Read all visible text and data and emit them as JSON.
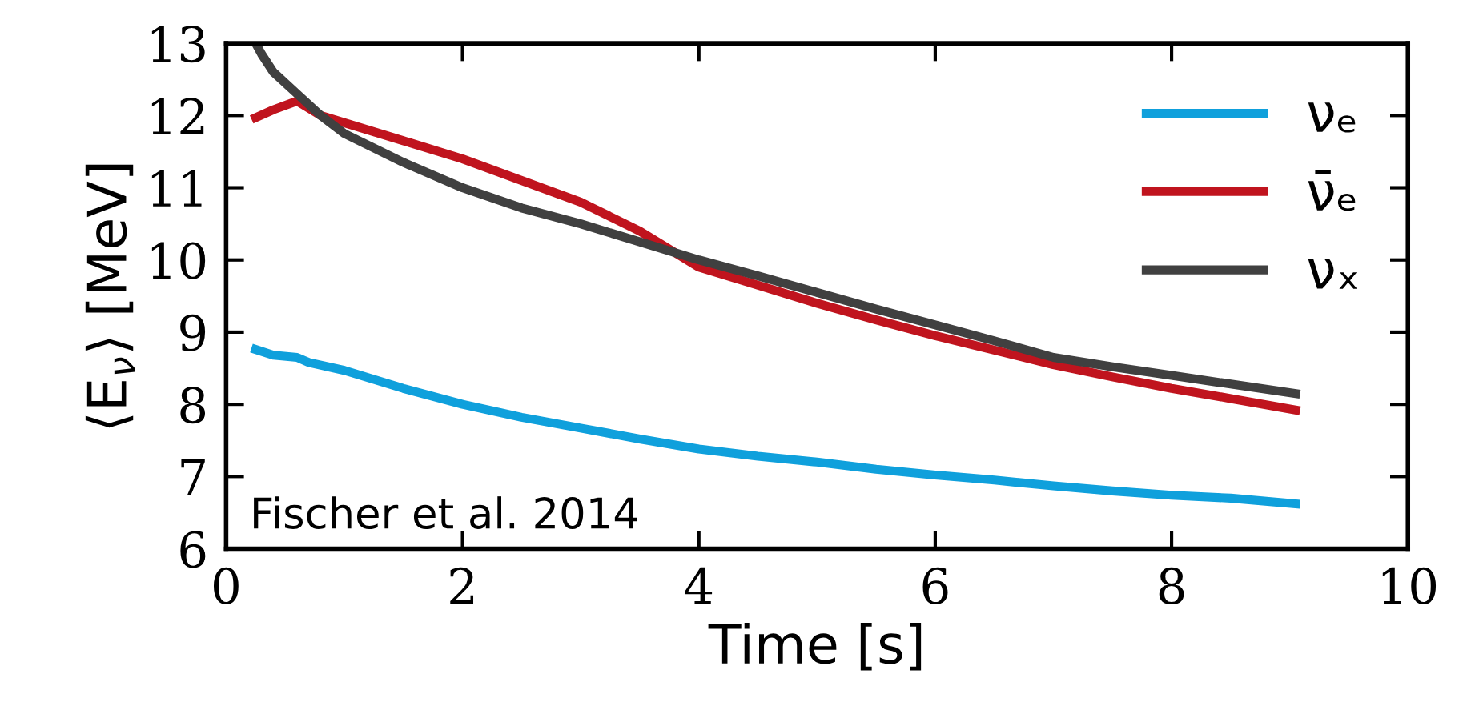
{
  "chart_data": {
    "type": "line",
    "xlabel": "Time [s]",
    "ylabel": "⟨E$_{ν}$⟩ [MeV]",
    "xlim": [
      0,
      10
    ],
    "ylim": [
      6,
      13
    ],
    "xticks": [
      0,
      2,
      4,
      6,
      8,
      10
    ],
    "yticks": [
      6,
      7,
      8,
      9,
      10,
      11,
      12,
      13
    ],
    "grid": false,
    "legend": "top right",
    "marker": "none",
    "line_style": "solid",
    "annotations": [
      "Fischer et al. 2014"
    ],
    "series": [
      {
        "name": "νₑ",
        "color": "#0fa0dc",
        "x": [
          0.25,
          0.4,
          0.6,
          0.7,
          1,
          1.5,
          2,
          2.5,
          3,
          3.5,
          4,
          4.5,
          5,
          5.5,
          6,
          6.5,
          7,
          7.5,
          8,
          8.5,
          9.05
        ],
        "values": [
          8.76,
          8.68,
          8.65,
          8.58,
          8.47,
          8.22,
          8.0,
          7.82,
          7.67,
          7.52,
          7.38,
          7.28,
          7.2,
          7.1,
          7.02,
          6.95,
          6.87,
          6.8,
          6.74,
          6.7,
          6.62
        ]
      },
      {
        "name": "ν̄ₑ",
        "color": "#c0141e",
        "x": [
          0.25,
          0.4,
          0.6,
          0.8,
          1,
          1.5,
          2,
          2.5,
          3,
          3.5,
          4,
          4.5,
          5,
          5.5,
          6,
          6.5,
          7,
          7.5,
          8,
          8.5,
          9.05
        ],
        "values": [
          11.97,
          12.08,
          12.2,
          12.0,
          11.9,
          11.65,
          11.4,
          11.1,
          10.8,
          10.4,
          9.9,
          9.65,
          9.4,
          9.17,
          8.95,
          8.75,
          8.55,
          8.38,
          8.22,
          8.08,
          7.92
        ]
      },
      {
        "name": "νₓ",
        "color": "#404040",
        "x": [
          0.25,
          0.3,
          0.4,
          0.6,
          0.8,
          1,
          1.5,
          2,
          2.5,
          3,
          3.5,
          4,
          4.5,
          5,
          5.5,
          6,
          6.5,
          7,
          7.5,
          8,
          8.5,
          9.05
        ],
        "values": [
          13.0,
          12.85,
          12.6,
          12.3,
          12.0,
          11.75,
          11.35,
          11.0,
          10.72,
          10.5,
          10.25,
          10.0,
          9.78,
          9.55,
          9.32,
          9.1,
          8.88,
          8.65,
          8.52,
          8.4,
          8.28,
          8.15
        ]
      }
    ]
  }
}
